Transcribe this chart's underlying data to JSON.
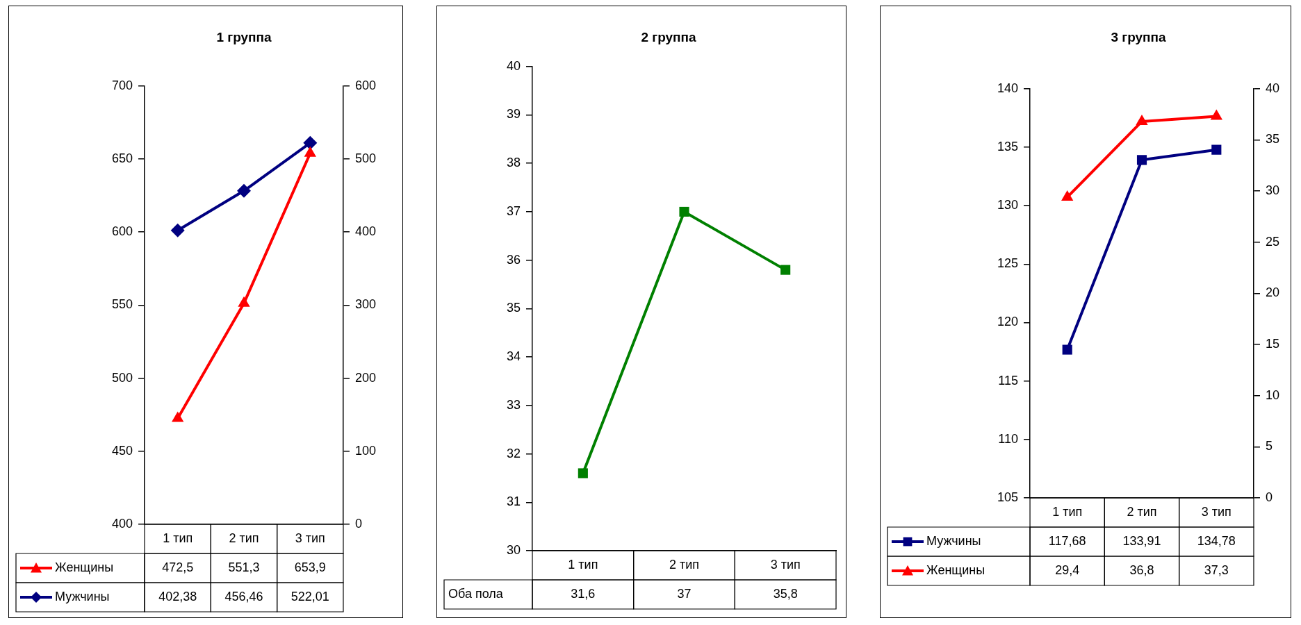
{
  "chart_data": [
    {
      "type": "line",
      "title": "1 группа",
      "categories": [
        "1 тип",
        "2 тип",
        "3 тип"
      ],
      "series": [
        {
          "name": "Женщины",
          "color": "#ff0000",
          "marker": "triangle",
          "values": [
            472.5,
            551.3,
            653.9
          ],
          "value_labels": [
            "472,5",
            "551,3",
            "653,9"
          ]
        },
        {
          "name": "Мужчины",
          "color": "#000080",
          "marker": "diamond",
          "axis": "y2",
          "values": [
            402.38,
            456.46,
            522.01
          ],
          "value_labels": [
            "402,38",
            "456,46",
            "522,01"
          ]
        }
      ],
      "ylim": [
        400,
        700
      ],
      "yticks": [
        400,
        450,
        500,
        550,
        600,
        650,
        700
      ],
      "y2lim": [
        0,
        600
      ],
      "y2ticks": [
        0,
        100,
        200,
        300,
        400,
        500,
        600
      ],
      "grid": false,
      "legend": "bottom"
    },
    {
      "type": "line",
      "title": "2 группа",
      "categories": [
        "1 тип",
        "2 тип",
        "3 тип"
      ],
      "series": [
        {
          "name": "Оба пола",
          "color": "#008000",
          "marker": "square",
          "values": [
            31.6,
            37,
            35.8
          ],
          "value_labels": [
            "31,6",
            "37",
            "35,8"
          ]
        }
      ],
      "ylim": [
        30,
        40
      ],
      "yticks": [
        30,
        31,
        32,
        33,
        34,
        35,
        36,
        37,
        38,
        39,
        40
      ],
      "grid": false,
      "legend": false
    },
    {
      "type": "line",
      "title": "3 группа",
      "categories": [
        "1 тип",
        "2 тип",
        "3 тип"
      ],
      "series": [
        {
          "name": "Мужчины",
          "color": "#000080",
          "marker": "square",
          "values": [
            117.68,
            133.91,
            134.78
          ],
          "value_labels": [
            "117,68",
            "133,91",
            "134,78"
          ]
        },
        {
          "name": "Женщины",
          "color": "#ff0000",
          "marker": "triangle",
          "axis": "y2",
          "values": [
            29.4,
            36.8,
            37.3
          ],
          "value_labels": [
            "29,4",
            "36,8",
            "37,3"
          ]
        }
      ],
      "ylim": [
        105,
        140
      ],
      "yticks": [
        105,
        110,
        115,
        120,
        125,
        130,
        135,
        140
      ],
      "y2lim": [
        0,
        40
      ],
      "y2ticks": [
        0,
        5,
        10,
        15,
        20,
        25,
        30,
        35,
        40
      ],
      "grid": false,
      "legend": "bottom"
    }
  ]
}
